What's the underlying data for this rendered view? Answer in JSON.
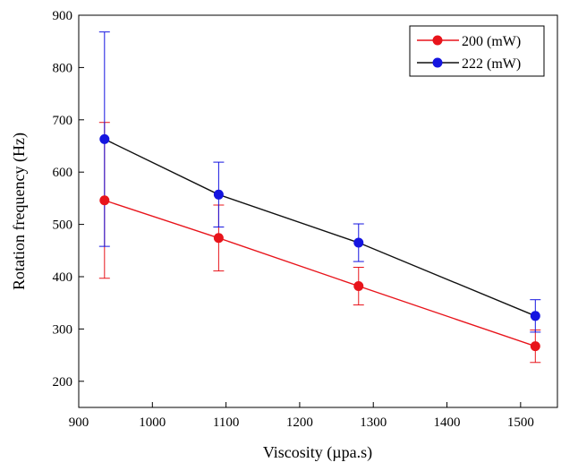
{
  "chart_data": {
    "type": "line",
    "title": "",
    "xlabel": "Viscosity (µpa.s)",
    "ylabel": "Rotation frequency (Hz)",
    "xlim": [
      900,
      1550
    ],
    "ylim": [
      150,
      900
    ],
    "xticks": [
      900,
      1000,
      1100,
      1200,
      1300,
      1400,
      1500
    ],
    "yticks": [
      200,
      300,
      400,
      500,
      600,
      700,
      800,
      900
    ],
    "x": [
      935,
      1090,
      1280,
      1520
    ],
    "grid": false,
    "legend_position": "top-right",
    "series": [
      {
        "name": "200 (mW)",
        "color": "#e8141b",
        "marker_color": "#e8141b",
        "values": [
          546,
          474,
          382,
          267
        ],
        "errors": [
          149,
          63,
          36,
          31
        ]
      },
      {
        "name": "222 (mW)",
        "color": "#111111",
        "marker_color": "#1515e0",
        "values": [
          663,
          557,
          465,
          325
        ],
        "errors": [
          205,
          62,
          36,
          31
        ]
      }
    ]
  }
}
